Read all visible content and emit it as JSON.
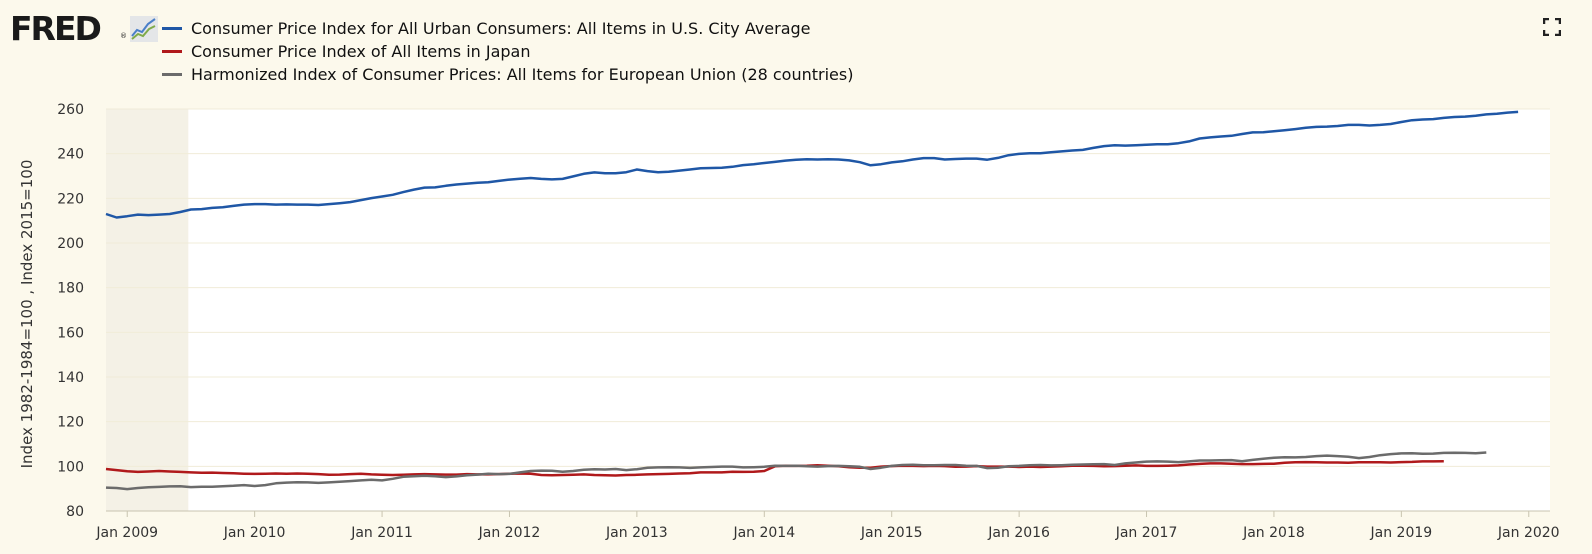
{
  "header": {
    "logo_text": "FRED",
    "logo_reg": "®",
    "logo_icon": "line-chart-icon",
    "fullscreen_icon": "fullscreen-icon"
  },
  "legend": [
    {
      "label": "Consumer Price Index for All Urban Consumers: All Items in U.S. City Average",
      "color": "#1f57a6"
    },
    {
      "label": "Consumer Price Index of All Items in Japan",
      "color": "#b0191b"
    },
    {
      "label": "Harmonized Index of Consumer Prices: All Items for European Union (28 countries)",
      "color": "#6b6b6b"
    }
  ],
  "chart_data": {
    "type": "line",
    "ylabel": "Index 1982-1984=100 , Index 2015=100",
    "xlabel": "",
    "ylim": [
      80,
      260
    ],
    "yticks": [
      80,
      100,
      120,
      140,
      160,
      180,
      200,
      220,
      240,
      260
    ],
    "xrange": [
      "2008-11",
      "2020-03"
    ],
    "xticks": [
      {
        "label": "Jan 2009",
        "date": "2009-01"
      },
      {
        "label": "Jan 2010",
        "date": "2010-01"
      },
      {
        "label": "Jan 2011",
        "date": "2011-01"
      },
      {
        "label": "Jan 2012",
        "date": "2012-01"
      },
      {
        "label": "Jan 2013",
        "date": "2013-01"
      },
      {
        "label": "Jan 2014",
        "date": "2014-01"
      },
      {
        "label": "Jan 2015",
        "date": "2015-01"
      },
      {
        "label": "Jan 2016",
        "date": "2016-01"
      },
      {
        "label": "Jan 2017",
        "date": "2017-01"
      },
      {
        "label": "Jan 2018",
        "date": "2018-01"
      },
      {
        "label": "Jan 2019",
        "date": "2019-01"
      },
      {
        "label": "Jan 2020",
        "date": "2020-01"
      }
    ],
    "recession": {
      "start": "2008-11",
      "end": "2009-06"
    },
    "grid": "horizontal",
    "series": [
      {
        "name": "Consumer Price Index for All Urban Consumers: All Items in U.S. City Average",
        "color": "#1f57a6",
        "start": "2008-11",
        "values": [
          213.0,
          211.4,
          212.0,
          212.7,
          212.5,
          212.7,
          213.0,
          213.9,
          215.0,
          215.2,
          215.7,
          216.0,
          216.6,
          217.2,
          217.4,
          217.4,
          217.2,
          217.3,
          217.2,
          217.2,
          217.0,
          217.4,
          217.8,
          218.3,
          219.2,
          220.1,
          220.8,
          221.6,
          222.8,
          223.9,
          224.8,
          224.9,
          225.6,
          226.2,
          226.6,
          227.0,
          227.2,
          227.8,
          228.4,
          228.8,
          229.1,
          228.7,
          228.5,
          228.7,
          229.8,
          231.0,
          231.6,
          231.2,
          231.2,
          231.7,
          232.9,
          232.2,
          231.7,
          231.9,
          232.4,
          232.9,
          233.5,
          233.6,
          233.7,
          234.1,
          234.9,
          235.3,
          235.8,
          236.3,
          236.9,
          237.3,
          237.5,
          237.4,
          237.5,
          237.4,
          237.0,
          236.2,
          234.8,
          235.3,
          236.1,
          236.6,
          237.4,
          238.0,
          238.0,
          237.4,
          237.6,
          237.8,
          237.8,
          237.3,
          238.1,
          239.3,
          239.9,
          240.2,
          240.2,
          240.6,
          241.0,
          241.4,
          241.7,
          242.6,
          243.4,
          243.8,
          243.6,
          243.8,
          244.0,
          244.2,
          244.2,
          244.7,
          245.5,
          246.8,
          247.3,
          247.7,
          248.0,
          248.8,
          249.5,
          249.6,
          250.0,
          250.5,
          251.0,
          251.6,
          252.0,
          252.1,
          252.4,
          252.9,
          252.9,
          252.6,
          252.9,
          253.3,
          254.2,
          255.0,
          255.3,
          255.5,
          256.0,
          256.4,
          256.6,
          257.0,
          257.6,
          257.9,
          258.4,
          258.7
        ]
      },
      {
        "name": "Consumer Price Index of All Items in Japan",
        "color": "#b0191b",
        "start": "2008-11",
        "values": [
          98.8,
          98.3,
          97.8,
          97.5,
          97.7,
          97.9,
          97.7,
          97.5,
          97.3,
          97.1,
          97.2,
          97.0,
          96.9,
          96.7,
          96.6,
          96.7,
          96.8,
          96.7,
          96.8,
          96.7,
          96.5,
          96.2,
          96.3,
          96.5,
          96.7,
          96.4,
          96.2,
          96.1,
          96.2,
          96.4,
          96.5,
          96.4,
          96.3,
          96.3,
          96.5,
          96.4,
          96.4,
          96.5,
          96.7,
          96.8,
          96.7,
          96.1,
          96.0,
          96.1,
          96.2,
          96.4,
          96.1,
          96.0,
          95.9,
          96.1,
          96.2,
          96.4,
          96.5,
          96.6,
          96.8,
          96.9,
          97.3,
          97.3,
          97.3,
          97.6,
          97.5,
          97.6,
          97.9,
          100.0,
          100.3,
          100.2,
          100.3,
          100.5,
          100.3,
          100.0,
          99.6,
          99.4,
          99.4,
          99.9,
          100.1,
          100.3,
          100.2,
          100.1,
          100.2,
          100.1,
          99.8,
          99.9,
          100.1,
          99.9,
          99.9,
          99.9,
          99.7,
          99.9,
          99.7,
          99.9,
          100.0,
          100.3,
          100.3,
          100.2,
          100.0,
          100.1,
          100.3,
          100.4,
          100.2,
          100.2,
          100.3,
          100.4,
          100.8,
          101.1,
          101.3,
          101.3,
          101.2,
          101.0,
          101.0,
          101.1,
          101.2,
          101.6,
          101.8,
          101.9,
          101.8,
          101.7,
          101.7,
          101.6,
          101.8,
          101.8,
          101.8,
          101.7,
          101.9,
          102.0,
          102.2,
          102.2,
          102.3
        ]
      },
      {
        "name": "Harmonized Index of Consumer Prices: All Items for European Union (28 countries)",
        "color": "#6b6b6b",
        "start": "2008-11",
        "values": [
          90.5,
          90.3,
          89.8,
          90.3,
          90.6,
          90.8,
          91.0,
          91.1,
          90.7,
          90.9,
          90.9,
          91.1,
          91.3,
          91.6,
          91.2,
          91.6,
          92.4,
          92.7,
          92.9,
          92.8,
          92.6,
          92.8,
          93.1,
          93.4,
          93.7,
          94.0,
          93.7,
          94.4,
          95.3,
          95.6,
          95.8,
          95.6,
          95.2,
          95.5,
          96.0,
          96.3,
          96.7,
          96.5,
          96.6,
          97.3,
          97.9,
          98.1,
          98.0,
          97.6,
          97.9,
          98.5,
          98.7,
          98.6,
          98.8,
          98.3,
          98.7,
          99.4,
          99.5,
          99.6,
          99.5,
          99.3,
          99.5,
          99.7,
          99.9,
          99.9,
          99.5,
          99.6,
          99.8,
          100.3,
          100.2,
          100.3,
          100.0,
          99.9,
          100.1,
          100.2,
          100.0,
          99.8,
          98.8,
          99.4,
          100.2,
          100.6,
          100.7,
          100.5,
          100.5,
          100.6,
          100.6,
          100.3,
          100.2,
          99.2,
          99.4,
          100.0,
          100.2,
          100.5,
          100.6,
          100.4,
          100.5,
          100.7,
          100.8,
          100.9,
          101.0,
          100.6,
          101.3,
          101.7,
          102.1,
          102.2,
          102.1,
          101.9,
          102.2,
          102.6,
          102.6,
          102.7,
          102.8,
          102.3,
          102.9,
          103.4,
          103.8,
          104.1,
          104.0,
          104.2,
          104.6,
          104.8,
          104.6,
          104.3,
          103.7,
          104.2,
          105.0,
          105.5,
          105.8,
          105.9,
          105.6,
          105.7,
          106.0,
          106.1,
          106.0,
          105.9,
          106.2
        ]
      }
    ]
  }
}
